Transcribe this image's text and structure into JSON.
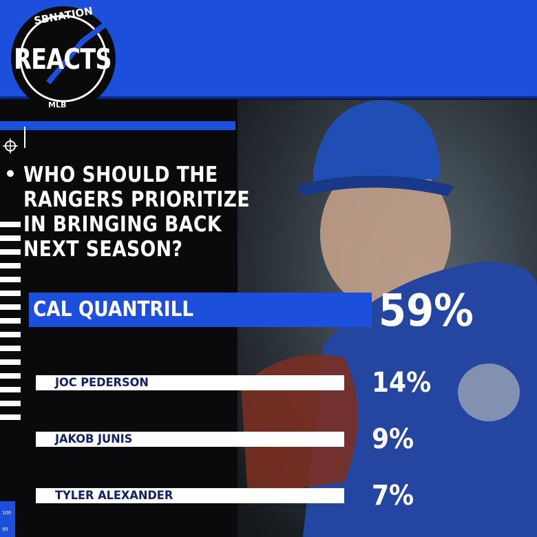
{
  "header": {
    "brand": "SBNATION",
    "title": "REACTS",
    "league": "MLB"
  },
  "question": [
    "WHO SHOULD THE",
    "RANGERS PRIORITIZE",
    "IN BRINGING BACK",
    "NEXT SEASON?"
  ],
  "options": [
    {
      "name": "CAL QUANTRILL",
      "percent": "59%"
    },
    {
      "name": "JOC PEDERSON",
      "percent": "14%"
    },
    {
      "name": "JAKOB JUNIS",
      "percent": "9%"
    },
    {
      "name": "TYLER ALEXANDER",
      "percent": "7%"
    }
  ],
  "scale_labels": [
    "100",
    "95"
  ]
}
